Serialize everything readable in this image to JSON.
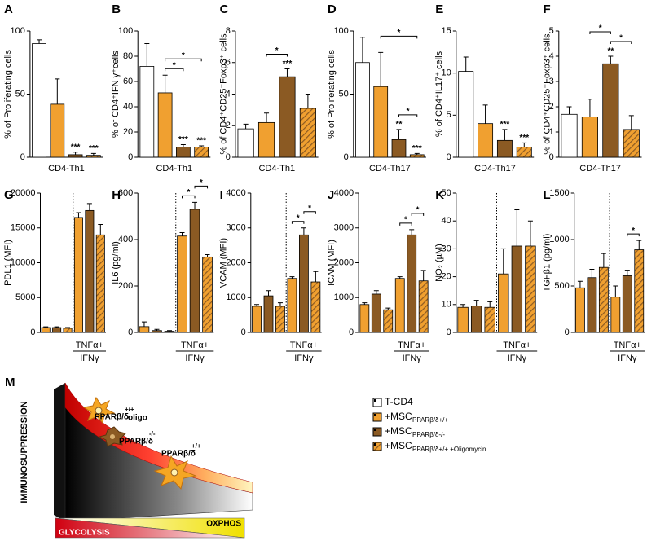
{
  "chart_data": [
    {
      "type": "bar",
      "panel": "A",
      "ylabel": "% of Proliferating cells",
      "xlabel": [
        "CD4-Th1"
      ],
      "ylim": [
        0,
        100
      ],
      "yticks": [
        0,
        50,
        100
      ],
      "values": [
        90,
        42,
        2,
        1.5
      ],
      "errors": [
        3,
        20,
        2,
        1.5
      ],
      "colors": [
        "#ffffff",
        "#f0a030",
        "#8b5a23",
        "#f0a030"
      ],
      "hatch": [
        false,
        false,
        false,
        true
      ],
      "stars": [
        null,
        null,
        "***",
        "***"
      ],
      "comparisons": []
    },
    {
      "type": "bar",
      "panel": "B",
      "ylabel": "% of CD4⁺IFN γ⁺cells",
      "xlabel": [
        "CD4-Th1"
      ],
      "ylim": [
        0,
        100
      ],
      "yticks": [
        0,
        20,
        40,
        60,
        80,
        100
      ],
      "values": [
        72,
        51,
        8,
        8
      ],
      "errors": [
        18,
        14,
        2,
        1
      ],
      "colors": [
        "#ffffff",
        "#f0a030",
        "#8b5a23",
        "#f0a030"
      ],
      "hatch": [
        false,
        false,
        false,
        true
      ],
      "stars": [
        null,
        null,
        "***",
        "***"
      ],
      "comparisons": [
        {
          "pair": [
            1,
            2
          ],
          "label": "*"
        },
        {
          "pair": [
            1,
            3
          ],
          "label": "*"
        }
      ]
    },
    {
      "type": "bar",
      "panel": "C",
      "ylabel": "% of CD4⁺CD25⁺Foxp3⁺ cells",
      "xlabel": [
        "CD4-Th1"
      ],
      "ylim": [
        0,
        8
      ],
      "yticks": [
        0,
        2,
        4,
        6,
        8
      ],
      "values": [
        1.8,
        2.2,
        5.1,
        3.1
      ],
      "errors": [
        0.3,
        0.6,
        0.5,
        0.9
      ],
      "colors": [
        "#ffffff",
        "#f0a030",
        "#8b5a23",
        "#f0a030"
      ],
      "hatch": [
        false,
        false,
        false,
        true
      ],
      "stars": [
        null,
        null,
        "***",
        null
      ],
      "comparisons": [
        {
          "pair": [
            1,
            2
          ],
          "label": "*"
        }
      ]
    },
    {
      "type": "bar",
      "panel": "D",
      "ylabel": "% of Proliferating cells",
      "xlabel": [
        "CD4-Th17"
      ],
      "ylim": [
        0,
        100
      ],
      "yticks": [
        0,
        50,
        100
      ],
      "values": [
        75,
        56,
        14,
        2
      ],
      "errors": [
        20,
        27,
        8,
        1
      ],
      "colors": [
        "#ffffff",
        "#f0a030",
        "#8b5a23",
        "#f0a030"
      ],
      "hatch": [
        false,
        false,
        false,
        true
      ],
      "stars": [
        null,
        null,
        "**",
        "***"
      ],
      "comparisons": [
        {
          "pair": [
            2,
            3
          ],
          "label": "*"
        },
        {
          "pair": [
            1,
            3
          ],
          "label": "*"
        }
      ]
    },
    {
      "type": "bar",
      "panel": "E",
      "ylabel": "% of CD4⁺IL17⁺ cells",
      "xlabel": [
        "CD4-Th17"
      ],
      "ylim": [
        0,
        15
      ],
      "yticks": [
        0,
        5,
        10,
        15
      ],
      "values": [
        10.2,
        4,
        2,
        1.2
      ],
      "errors": [
        1.7,
        2.2,
        1.3,
        0.5
      ],
      "colors": [
        "#ffffff",
        "#f0a030",
        "#8b5a23",
        "#f0a030"
      ],
      "hatch": [
        false,
        false,
        false,
        true
      ],
      "stars": [
        null,
        null,
        "***",
        "***"
      ],
      "comparisons": []
    },
    {
      "type": "bar",
      "panel": "F",
      "ylabel": "% of CD4⁺CD25⁺Foxp3⁺ cells",
      "xlabel": [
        "CD4-Th17"
      ],
      "ylim": [
        0,
        5
      ],
      "yticks": [
        0,
        1,
        2,
        3,
        4,
        5
      ],
      "values": [
        1.7,
        1.6,
        3.7,
        1.1
      ],
      "errors": [
        0.3,
        0.7,
        0.3,
        0.55
      ],
      "colors": [
        "#ffffff",
        "#f0a030",
        "#8b5a23",
        "#f0a030"
      ],
      "hatch": [
        false,
        false,
        false,
        true
      ],
      "stars": [
        null,
        null,
        "**",
        null
      ],
      "comparisons": [
        {
          "pair": [
            2,
            3
          ],
          "label": "*"
        },
        {
          "pair": [
            1,
            2
          ],
          "label": "*"
        }
      ]
    },
    {
      "type": "bar",
      "panel": "G",
      "ylabel": "PDL1 (MFI)",
      "xlabel": [
        "TNFα+",
        "IFNγ"
      ],
      "group_start": 3,
      "ylim": [
        0,
        20000
      ],
      "yticks": [
        0,
        5000,
        10000,
        15000,
        20000
      ],
      "values": [
        700,
        700,
        600,
        16500,
        17500,
        14000
      ],
      "errors": [
        100,
        100,
        100,
        700,
        1000,
        1500
      ],
      "colors": [
        "#f0a030",
        "#8b5a23",
        "#f0a030",
        "#f0a030",
        "#8b5a23",
        "#f0a030"
      ],
      "hatch": [
        false,
        false,
        true,
        false,
        false,
        true
      ],
      "comparisons": []
    },
    {
      "type": "bar",
      "panel": "H",
      "ylabel": "IL6 (pg/ml)",
      "xlabel": [
        "TNFα+",
        "IFNγ"
      ],
      "group_start": 3,
      "ylim": [
        0,
        600
      ],
      "yticks": [
        0,
        200,
        400,
        600
      ],
      "values": [
        25,
        8,
        5,
        415,
        530,
        325
      ],
      "errors": [
        20,
        5,
        3,
        15,
        30,
        10
      ],
      "colors": [
        "#f0a030",
        "#8b5a23",
        "#f0a030",
        "#f0a030",
        "#8b5a23",
        "#f0a030"
      ],
      "hatch": [
        false,
        false,
        true,
        false,
        false,
        true
      ],
      "comparisons": [
        {
          "pair": [
            3,
            4
          ],
          "label": "*"
        },
        {
          "pair": [
            4,
            5
          ],
          "label": "*"
        }
      ]
    },
    {
      "type": "bar",
      "panel": "I",
      "ylabel": "VCAM (MFI)",
      "xlabel": [
        "TNFα+",
        "IFNγ"
      ],
      "group_start": 3,
      "ylim": [
        0,
        4000
      ],
      "yticks": [
        0,
        1000,
        2000,
        3000,
        4000
      ],
      "values": [
        750,
        1050,
        750,
        1550,
        2800,
        1450
      ],
      "errors": [
        50,
        150,
        100,
        50,
        200,
        300
      ],
      "colors": [
        "#f0a030",
        "#8b5a23",
        "#f0a030",
        "#f0a030",
        "#8b5a23",
        "#f0a030"
      ],
      "hatch": [
        false,
        false,
        true,
        false,
        false,
        true
      ],
      "comparisons": [
        {
          "pair": [
            3,
            4
          ],
          "label": "*"
        },
        {
          "pair": [
            4,
            5
          ],
          "label": "*"
        }
      ]
    },
    {
      "type": "bar",
      "panel": "J",
      "ylabel": "ICAM (MFI)",
      "xlabel": [
        "TNFα+",
        "IFNγ"
      ],
      "group_start": 3,
      "ylim": [
        0,
        4000
      ],
      "yticks": [
        0,
        1000,
        2000,
        3000,
        4000
      ],
      "values": [
        800,
        1100,
        650,
        1550,
        2800,
        1480
      ],
      "errors": [
        50,
        100,
        50,
        50,
        150,
        300
      ],
      "colors": [
        "#f0a030",
        "#8b5a23",
        "#f0a030",
        "#f0a030",
        "#8b5a23",
        "#f0a030"
      ],
      "hatch": [
        false,
        false,
        true,
        false,
        false,
        true
      ],
      "comparisons": [
        {
          "pair": [
            3,
            4
          ],
          "label": "*"
        },
        {
          "pair": [
            4,
            5
          ],
          "label": "*"
        }
      ]
    },
    {
      "type": "bar",
      "panel": "K",
      "ylabel": "NO₂ (µM)",
      "xlabel": [
        "TNFα+",
        "IFNγ"
      ],
      "group_start": 3,
      "ylim": [
        0,
        50
      ],
      "yticks": [
        0,
        10,
        20,
        30,
        40,
        50
      ],
      "values": [
        9,
        9.5,
        9,
        21,
        31,
        31
      ],
      "errors": [
        1,
        2,
        2,
        9,
        13,
        9
      ],
      "colors": [
        "#f0a030",
        "#8b5a23",
        "#f0a030",
        "#f0a030",
        "#8b5a23",
        "#f0a030"
      ],
      "hatch": [
        false,
        false,
        true,
        false,
        false,
        true
      ],
      "comparisons": []
    },
    {
      "type": "bar",
      "panel": "L",
      "ylabel": "TGFβ1 (pg/ml)",
      "xlabel": [
        "TNFα+",
        "IFNγ"
      ],
      "group_start": 3,
      "ylim": [
        0,
        1500
      ],
      "yticks": [
        0,
        500,
        1000,
        1500
      ],
      "values": [
        480,
        590,
        700,
        380,
        610,
        890
      ],
      "errors": [
        70,
        90,
        150,
        120,
        60,
        100
      ],
      "colors": [
        "#f0a030",
        "#8b5a23",
        "#f0a030",
        "#f0a030",
        "#8b5a23",
        "#f0a030"
      ],
      "hatch": [
        false,
        false,
        true,
        false,
        false,
        true
      ],
      "comparisons": [
        {
          "pair": [
            4,
            5
          ],
          "label": "*"
        }
      ]
    }
  ],
  "legend": [
    {
      "name": "T-CD4",
      "color": "#ffffff",
      "hatch": false
    },
    {
      "name": "+MSC",
      "sub": "PPARβ/δ+/+",
      "color": "#f0a030",
      "hatch": false
    },
    {
      "name": "+MSC",
      "sub": "PPARβ/δ-/-",
      "color": "#8b5a23",
      "hatch": false
    },
    {
      "name": "+MSC",
      "sub": "PPARβ/δ+/+ +Oligomycin",
      "color": "#f0a030",
      "hatch": true
    }
  ],
  "diagram": {
    "panel": "M",
    "axis": "IMMUNOSUPPRESSION",
    "cells": [
      {
        "label": "PPARβ/δ",
        "sup": "+/+",
        "sub": "oligo"
      },
      {
        "label": "PPARβ/δ",
        "sup": "-/-"
      },
      {
        "label": "PPARβ/δ",
        "sup": "+/+"
      }
    ],
    "oxphos": "OXPHOS",
    "glycolysis": "GLYCOLYSIS"
  }
}
